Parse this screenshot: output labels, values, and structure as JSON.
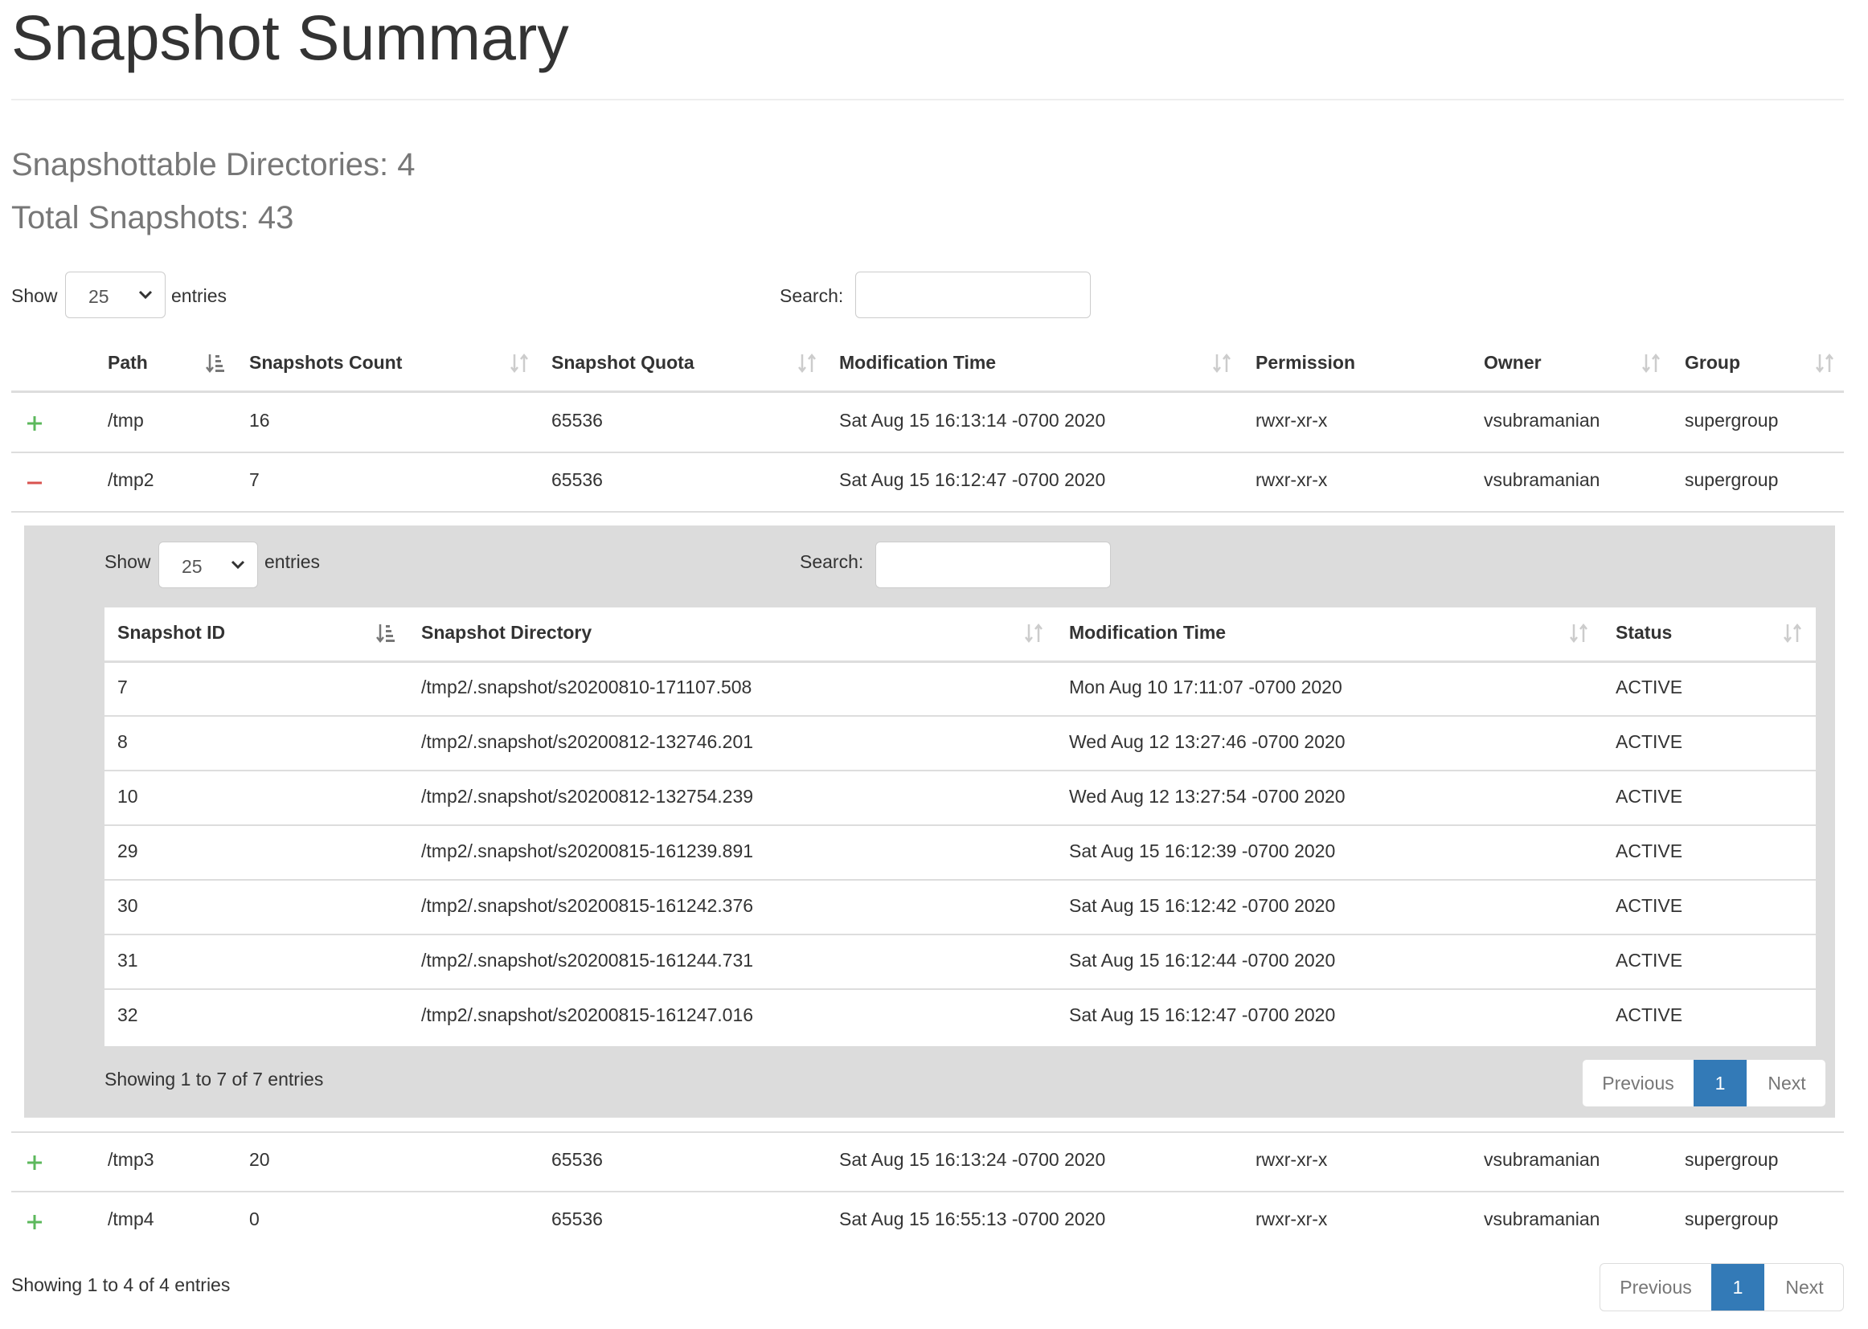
{
  "page": {
    "title": "Snapshot Summary",
    "snapshottable_dirs": "Snapshottable Directories: 4",
    "total_snapshots": "Total Snapshots: 43"
  },
  "outer_controls": {
    "show_label": "Show",
    "entries_value": "25",
    "entries_label": "entries",
    "search_label": "Search:",
    "search_value": ""
  },
  "outer_table": {
    "columns": [
      "Path",
      "Snapshots Count",
      "Snapshot Quota",
      "Modification Time",
      "Permission",
      "Owner",
      "Group"
    ],
    "rows": [
      {
        "expand": "+",
        "path": "/tmp",
        "count": "16",
        "quota": "65536",
        "mtime": "Sat Aug 15 16:13:14 -0700 2020",
        "perm": "rwxr-xr-x",
        "owner": "vsubramanian",
        "group": "supergroup"
      },
      {
        "expand": "−",
        "path": "/tmp2",
        "count": "7",
        "quota": "65536",
        "mtime": "Sat Aug 15 16:12:47 -0700 2020",
        "perm": "rwxr-xr-x",
        "owner": "vsubramanian",
        "group": "supergroup"
      },
      {
        "expand": "+",
        "path": "/tmp3",
        "count": "20",
        "quota": "65536",
        "mtime": "Sat Aug 15 16:13:24 -0700 2020",
        "perm": "rwxr-xr-x",
        "owner": "vsubramanian",
        "group": "supergroup"
      },
      {
        "expand": "+",
        "path": "/tmp4",
        "count": "0",
        "quota": "65536",
        "mtime": "Sat Aug 15 16:55:13 -0700 2020",
        "perm": "rwxr-xr-x",
        "owner": "vsubramanian",
        "group": "supergroup"
      }
    ],
    "info": "Showing 1 to 4 of 4 entries",
    "pager": {
      "prev": "Previous",
      "current": "1",
      "next": "Next"
    }
  },
  "child_controls": {
    "show_label": "Show",
    "entries_value": "25",
    "entries_label": "entries",
    "search_label": "Search:",
    "search_value": ""
  },
  "child_table": {
    "columns": [
      "Snapshot ID",
      "Snapshot Directory",
      "Modification Time",
      "Status"
    ],
    "rows": [
      {
        "id": "7",
        "dir": "/tmp2/.snapshot/s20200810-171107.508",
        "mtime": "Mon Aug 10 17:11:07 -0700 2020",
        "status": "ACTIVE"
      },
      {
        "id": "8",
        "dir": "/tmp2/.snapshot/s20200812-132746.201",
        "mtime": "Wed Aug 12 13:27:46 -0700 2020",
        "status": "ACTIVE"
      },
      {
        "id": "10",
        "dir": "/tmp2/.snapshot/s20200812-132754.239",
        "mtime": "Wed Aug 12 13:27:54 -0700 2020",
        "status": "ACTIVE"
      },
      {
        "id": "29",
        "dir": "/tmp2/.snapshot/s20200815-161239.891",
        "mtime": "Sat Aug 15 16:12:39 -0700 2020",
        "status": "ACTIVE"
      },
      {
        "id": "30",
        "dir": "/tmp2/.snapshot/s20200815-161242.376",
        "mtime": "Sat Aug 15 16:12:42 -0700 2020",
        "status": "ACTIVE"
      },
      {
        "id": "31",
        "dir": "/tmp2/.snapshot/s20200815-161244.731",
        "mtime": "Sat Aug 15 16:12:44 -0700 2020",
        "status": "ACTIVE"
      },
      {
        "id": "32",
        "dir": "/tmp2/.snapshot/s20200815-161247.016",
        "mtime": "Sat Aug 15 16:12:47 -0700 2020",
        "status": "ACTIVE"
      }
    ],
    "info": "Showing 1 to 7 of 7 entries",
    "pager": {
      "prev": "Previous",
      "current": "1",
      "next": "Next"
    }
  },
  "icons": {
    "expand": "plus-icon",
    "collapse": "minus-icon",
    "sort": "sort-arrows-icon",
    "sort_asc": "sort-asc-icon",
    "select_chevron": "chevron-down-icon"
  },
  "colors": {
    "expand": "#5cb85c",
    "collapse": "#d9534f",
    "pager_active": "#337ab7",
    "panel_bg": "#dcdcdc"
  }
}
